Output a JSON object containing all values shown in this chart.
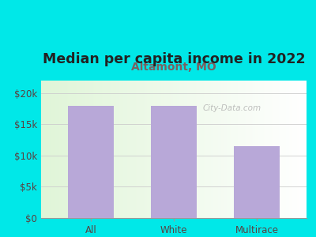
{
  "title": "Median per capita income in 2022",
  "subtitle": "Altamont, MO",
  "categories": [
    "All",
    "White",
    "Multirace"
  ],
  "values": [
    18000,
    17900,
    11500
  ],
  "bar_color": "#b8a8d8",
  "outer_bg": "#00e8e8",
  "title_fontsize": 12.5,
  "subtitle_fontsize": 10,
  "subtitle_color": "#7a6060",
  "tick_label_color": "#5a4040",
  "ylim": [
    0,
    22000
  ],
  "yticks": [
    0,
    5000,
    10000,
    15000,
    20000
  ],
  "ytick_labels": [
    "$0",
    "$5k",
    "$10k",
    "$15k",
    "$20k"
  ],
  "watermark": "City-Data.com"
}
